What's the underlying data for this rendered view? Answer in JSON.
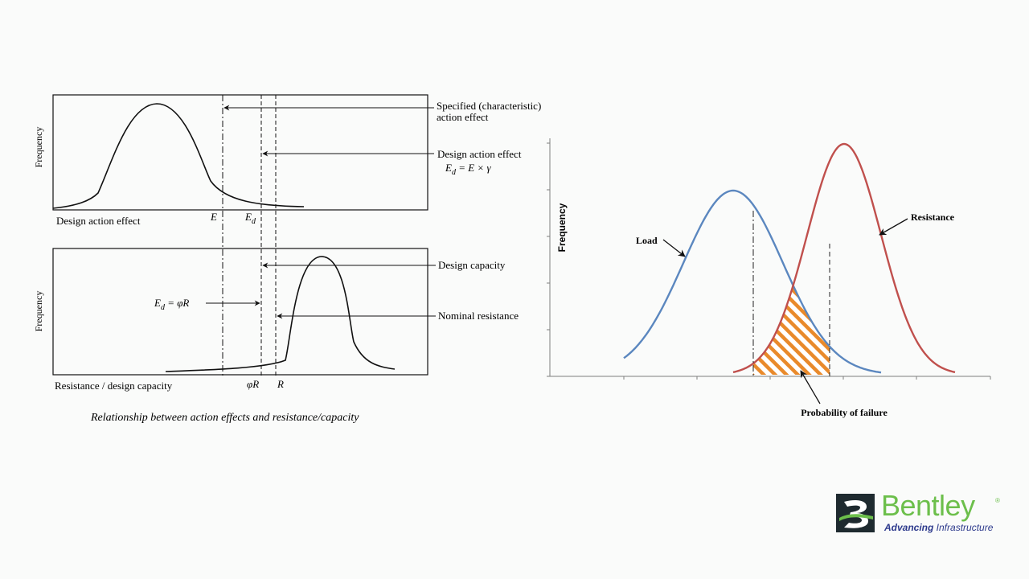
{
  "left_diagram": {
    "top_panel": {
      "ylabel": "Frequency",
      "xlabel": "Design action effect",
      "tick_e": "E",
      "tick_ed_main": "E",
      "tick_ed_sub": "d",
      "callout_specified_line1": "Specified (characteristic)",
      "callout_specified_line2": "action effect",
      "callout_design_action": "Design action effect",
      "formula_ed_main": "E",
      "formula_ed_sub": "d",
      "formula_ed_rest": " = E × γ"
    },
    "bottom_panel": {
      "ylabel": "Frequency",
      "xlabel": "Resistance / design capacity",
      "tick_phir": "φR",
      "tick_r": "R",
      "callout_design_capacity": "Design capacity",
      "callout_nominal": "Nominal resistance",
      "formula_main": "E",
      "formula_sub": "d",
      "formula_rest": " = φR"
    },
    "caption": "Relationship between action effects and resistance/capacity"
  },
  "right_chart": {
    "ylabel": "Frequency",
    "label_load": "Load",
    "label_resistance": "Resistance",
    "label_failure": "Probability of failure",
    "colors": {
      "load": "#5b87bf",
      "resistance": "#c0504d",
      "failure": "#e98a2b"
    }
  },
  "logo": {
    "word": "Bentley",
    "reg": "®",
    "tag_bold": "Advancing",
    "tag_rest": " Infrastructure",
    "colors": {
      "green": "#6cbf4b",
      "navy": "#2d3a8c",
      "dark": "#1e2a2f"
    }
  }
}
